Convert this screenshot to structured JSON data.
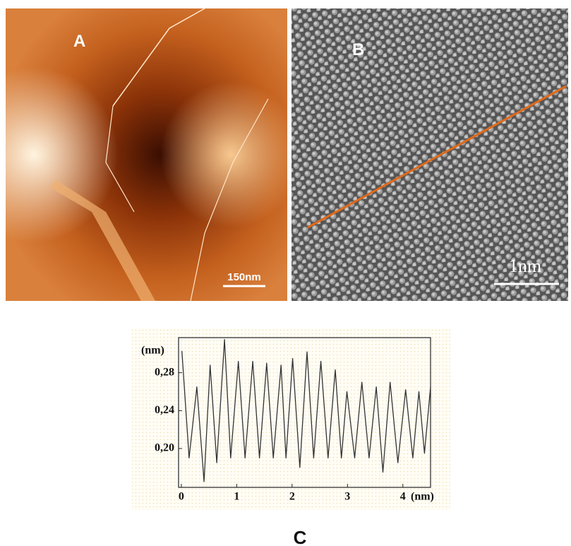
{
  "panels": {
    "a": {
      "label": "A",
      "scale_bar": "150nm"
    },
    "b": {
      "label": "B",
      "scale_bar": "1nm"
    },
    "c": {
      "label": "C"
    }
  },
  "chart_data": {
    "type": "line",
    "ylabel": "(nm)",
    "xlabel": "(nm)",
    "x": [
      0.01,
      0.14,
      0.28,
      0.41,
      0.52,
      0.64,
      0.78,
      0.89,
      1.03,
      1.15,
      1.29,
      1.41,
      1.54,
      1.66,
      1.8,
      1.89,
      2.01,
      2.14,
      2.27,
      2.39,
      2.52,
      2.65,
      2.78,
      2.89,
      2.99,
      3.13,
      3.26,
      3.39,
      3.52,
      3.64,
      3.77,
      3.91,
      4.05,
      4.18,
      4.29,
      4.39,
      4.5
    ],
    "series": [
      {
        "color": "#333333",
        "values": [
          0.303,
          0.19,
          0.265,
          0.165,
          0.288,
          0.185,
          0.315,
          0.19,
          0.292,
          0.19,
          0.292,
          0.19,
          0.29,
          0.19,
          0.288,
          0.19,
          0.295,
          0.18,
          0.302,
          0.19,
          0.292,
          0.19,
          0.283,
          0.19,
          0.26,
          0.19,
          0.27,
          0.19,
          0.265,
          0.175,
          0.27,
          0.185,
          0.262,
          0.19,
          0.26,
          0.195,
          0.265
        ]
      }
    ],
    "xlim": [
      -0.05,
      4.5
    ],
    "ylim": [
      0.159,
      0.317
    ],
    "xticks": [
      0,
      1,
      2,
      3,
      4
    ],
    "yticks": [
      {
        "value": 0.2,
        "label": "0,20"
      },
      {
        "value": 0.24,
        "label": "0,24"
      },
      {
        "value": 0.28,
        "label": "0,28"
      }
    ]
  }
}
